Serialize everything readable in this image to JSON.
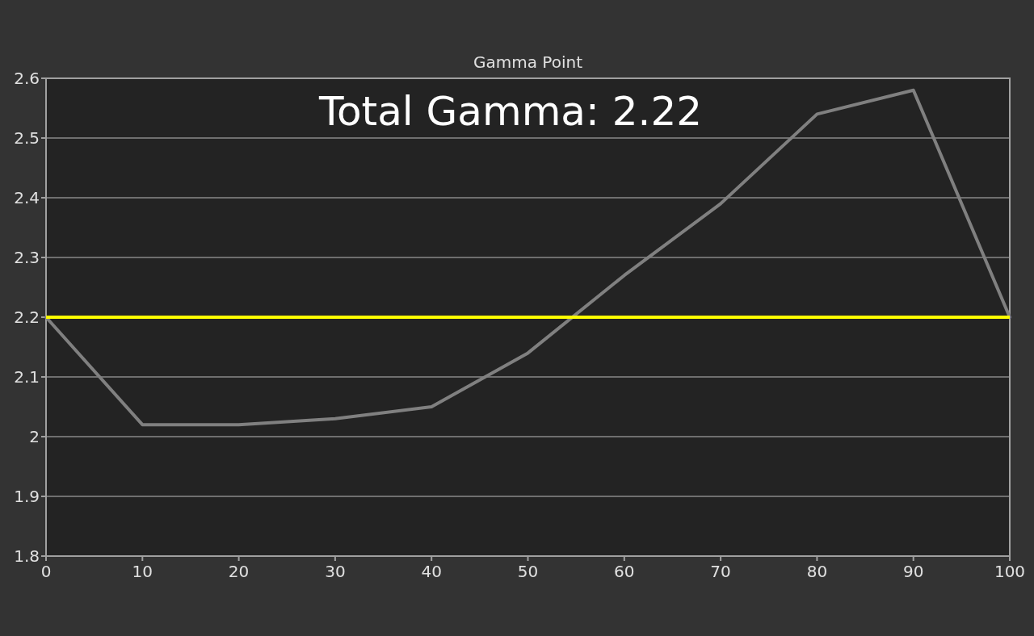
{
  "chart_data": {
    "type": "line",
    "title": "Gamma Point",
    "annotations": [
      "Total Gamma: 2.22"
    ],
    "x": [
      0,
      10,
      20,
      30,
      40,
      50,
      60,
      70,
      80,
      90,
      100
    ],
    "series": [
      {
        "color": "#808080",
        "values": [
          2.2,
          2.02,
          2.02,
          2.03,
          2.05,
          2.14,
          2.27,
          2.39,
          2.54,
          2.58,
          2.2
        ]
      }
    ],
    "xlim": [
      0,
      100
    ],
    "xticks": [
      0,
      10,
      20,
      30,
      40,
      50,
      60,
      70,
      80,
      90,
      100
    ],
    "ylim": [
      1.8,
      2.6
    ],
    "yticks": [
      1.8,
      1.9,
      2,
      2.1,
      2.2,
      2.3,
      2.4,
      2.5,
      2.6
    ],
    "grid": "y",
    "marker": "none",
    "line_style": "solid",
    "ref_lines": [
      {
        "axis": "y",
        "value": 2.2,
        "color": "#ffff00"
      }
    ]
  }
}
